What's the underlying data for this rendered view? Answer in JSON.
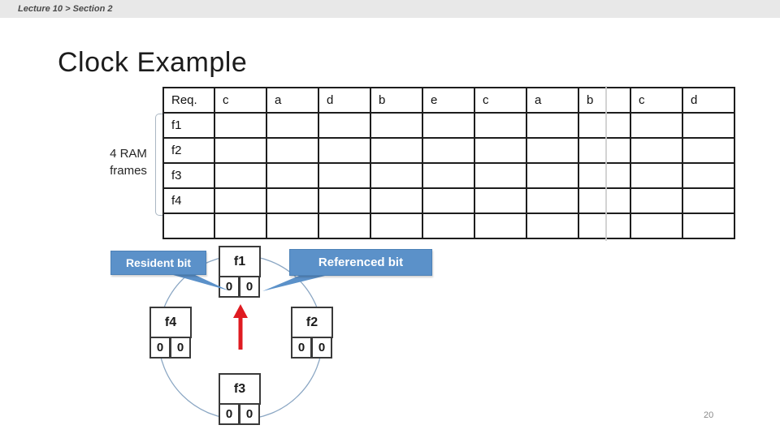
{
  "breadcrumb": "Lecture 10 > Section 2",
  "slide": {
    "title": "Clock Example",
    "page_number": "20"
  },
  "ram_label": {
    "line1": "4 RAM",
    "line2": "frames"
  },
  "table": {
    "header": [
      "Req.",
      "c",
      "a",
      "d",
      "b",
      "e",
      "c",
      "a",
      "b",
      "c",
      "d"
    ],
    "rows": [
      {
        "label": "f1",
        "cells": [
          "",
          "",
          "",
          "",
          "",
          "",
          "",
          "",
          "",
          ""
        ]
      },
      {
        "label": "f2",
        "cells": [
          "",
          "",
          "",
          "",
          "",
          "",
          "",
          "",
          "",
          ""
        ]
      },
      {
        "label": "f3",
        "cells": [
          "",
          "",
          "",
          "",
          "",
          "",
          "",
          "",
          "",
          ""
        ]
      },
      {
        "label": "f4",
        "cells": [
          "",
          "",
          "",
          "",
          "",
          "",
          "",
          "",
          "",
          ""
        ]
      },
      {
        "label": "",
        "cells": [
          "",
          "",
          "",
          "",
          "",
          "",
          "",
          "",
          "",
          ""
        ]
      }
    ]
  },
  "clock": {
    "nodes": [
      {
        "label": "f1",
        "resident": "0",
        "referenced": "0"
      },
      {
        "label": "f2",
        "resident": "0",
        "referenced": "0"
      },
      {
        "label": "f3",
        "resident": "0",
        "referenced": "0"
      },
      {
        "label": "f4",
        "resident": "0",
        "referenced": "0"
      }
    ],
    "callouts": {
      "resident": "Resident bit",
      "referenced": "Referenced bit"
    }
  },
  "colors": {
    "callout_blue": "#5b91c9",
    "arrow_red": "#df1b21",
    "circle_stroke": "#8aa6c3",
    "topbar_bg": "#e8e8e8"
  }
}
